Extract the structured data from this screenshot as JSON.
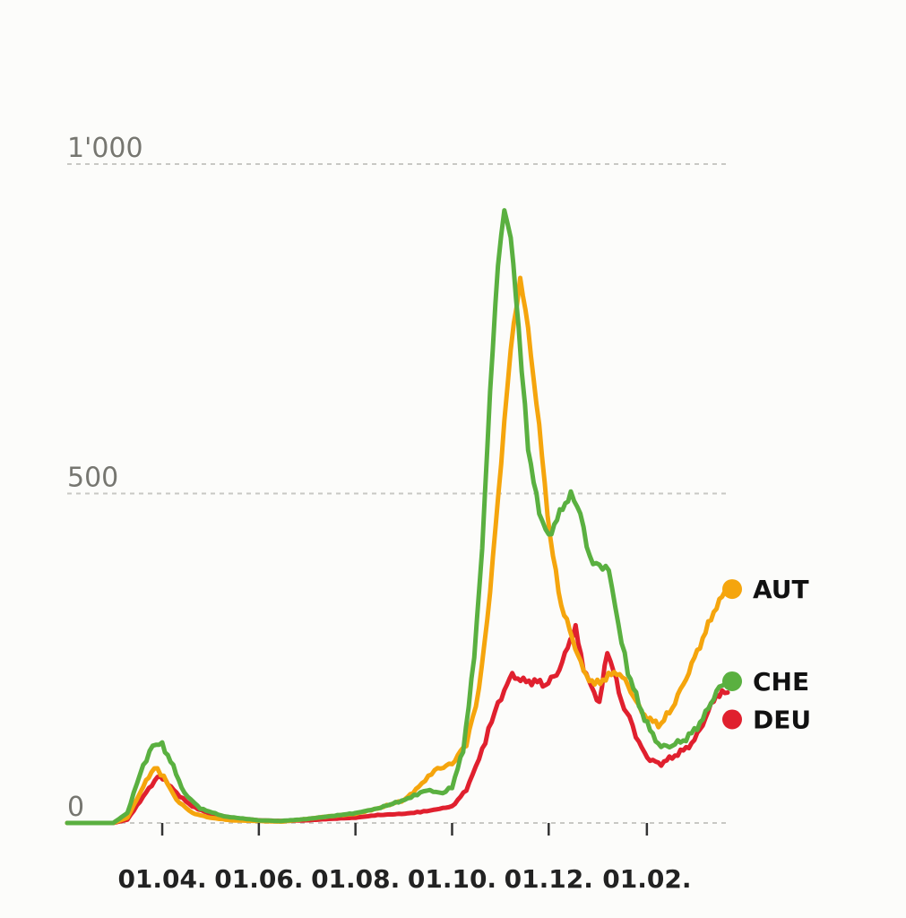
{
  "chart_data": {
    "type": "line",
    "title": "",
    "xlabel": "",
    "ylabel": "",
    "ylim": [
      0,
      1000
    ],
    "yticks": [
      0,
      500,
      1000
    ],
    "ytick_labels": [
      "0",
      "500",
      "1'000"
    ],
    "xlim": [
      "2020-02-01",
      "2021-03-24"
    ],
    "xticks": [
      "2020-04-01",
      "2020-06-01",
      "2020-08-01",
      "2020-10-01",
      "2020-12-01",
      "2021-02-01"
    ],
    "xtick_labels": [
      "01.04.",
      "01.06.",
      "01.08.",
      "01.10.",
      "01.12.",
      "01.02."
    ],
    "grid": true,
    "legend": "end-of-line labels, right",
    "series": [
      {
        "name": "DEU",
        "color": "#e0202e",
        "points": [
          [
            "2020-02-01",
            0
          ],
          [
            "2020-03-01",
            0
          ],
          [
            "2020-03-10",
            5
          ],
          [
            "2020-03-20",
            40
          ],
          [
            "2020-03-29",
            70
          ],
          [
            "2020-04-03",
            65
          ],
          [
            "2020-04-10",
            45
          ],
          [
            "2020-04-20",
            25
          ],
          [
            "2020-05-01",
            14
          ],
          [
            "2020-05-15",
            8
          ],
          [
            "2020-06-01",
            4
          ],
          [
            "2020-06-15",
            3
          ],
          [
            "2020-07-01",
            4
          ],
          [
            "2020-07-15",
            6
          ],
          [
            "2020-08-01",
            8
          ],
          [
            "2020-08-15",
            12
          ],
          [
            "2020-09-01",
            14
          ],
          [
            "2020-09-15",
            18
          ],
          [
            "2020-10-01",
            25
          ],
          [
            "2020-10-10",
            50
          ],
          [
            "2020-10-20",
            110
          ],
          [
            "2020-10-28",
            170
          ],
          [
            "2020-11-03",
            200
          ],
          [
            "2020-11-08",
            225
          ],
          [
            "2020-11-15",
            215
          ],
          [
            "2020-11-22",
            215
          ],
          [
            "2020-11-29",
            210
          ],
          [
            "2020-12-06",
            225
          ],
          [
            "2020-12-13",
            265
          ],
          [
            "2020-12-18",
            300
          ],
          [
            "2020-12-23",
            230
          ],
          [
            "2020-12-28",
            210
          ],
          [
            "2021-01-02",
            180
          ],
          [
            "2021-01-07",
            260
          ],
          [
            "2021-01-11",
            230
          ],
          [
            "2021-01-16",
            185
          ],
          [
            "2021-01-21",
            160
          ],
          [
            "2021-01-27",
            120
          ],
          [
            "2021-02-03",
            95
          ],
          [
            "2021-02-10",
            90
          ],
          [
            "2021-02-17",
            100
          ],
          [
            "2021-02-24",
            110
          ],
          [
            "2021-03-03",
            125
          ],
          [
            "2021-03-10",
            160
          ],
          [
            "2021-03-17",
            195
          ],
          [
            "2021-03-24",
            198
          ]
        ]
      },
      {
        "name": "AUT",
        "color": "#f5a50d",
        "points": [
          [
            "2020-02-01",
            0
          ],
          [
            "2020-03-01",
            0
          ],
          [
            "2020-03-10",
            8
          ],
          [
            "2020-03-20",
            55
          ],
          [
            "2020-03-27",
            85
          ],
          [
            "2020-04-02",
            70
          ],
          [
            "2020-04-10",
            35
          ],
          [
            "2020-04-20",
            15
          ],
          [
            "2020-05-01",
            8
          ],
          [
            "2020-05-15",
            4
          ],
          [
            "2020-06-01",
            3
          ],
          [
            "2020-06-15",
            2
          ],
          [
            "2020-07-01",
            6
          ],
          [
            "2020-07-15",
            10
          ],
          [
            "2020-08-01",
            14
          ],
          [
            "2020-08-15",
            22
          ],
          [
            "2020-09-01",
            35
          ],
          [
            "2020-09-10",
            55
          ],
          [
            "2020-09-20",
            80
          ],
          [
            "2020-10-01",
            90
          ],
          [
            "2020-10-10",
            120
          ],
          [
            "2020-10-18",
            200
          ],
          [
            "2020-10-25",
            350
          ],
          [
            "2020-11-01",
            550
          ],
          [
            "2020-11-07",
            720
          ],
          [
            "2020-11-13",
            825
          ],
          [
            "2020-11-18",
            750
          ],
          [
            "2020-11-25",
            600
          ],
          [
            "2020-12-02",
            430
          ],
          [
            "2020-12-09",
            330
          ],
          [
            "2020-12-16",
            280
          ],
          [
            "2020-12-23",
            230
          ],
          [
            "2020-12-30",
            210
          ],
          [
            "2021-01-06",
            220
          ],
          [
            "2021-01-13",
            230
          ],
          [
            "2021-01-20",
            210
          ],
          [
            "2021-01-27",
            175
          ],
          [
            "2021-02-03",
            155
          ],
          [
            "2021-02-10",
            150
          ],
          [
            "2021-02-17",
            175
          ],
          [
            "2021-02-24",
            210
          ],
          [
            "2021-03-03",
            250
          ],
          [
            "2021-03-10",
            290
          ],
          [
            "2021-03-17",
            330
          ],
          [
            "2021-03-24",
            355
          ]
        ]
      },
      {
        "name": "CHE",
        "color": "#5ab040",
        "points": [
          [
            "2020-02-01",
            0
          ],
          [
            "2020-03-01",
            0
          ],
          [
            "2020-03-10",
            15
          ],
          [
            "2020-03-18",
            75
          ],
          [
            "2020-03-26",
            118
          ],
          [
            "2020-04-01",
            120
          ],
          [
            "2020-04-08",
            85
          ],
          [
            "2020-04-15",
            45
          ],
          [
            "2020-04-25",
            22
          ],
          [
            "2020-05-10",
            10
          ],
          [
            "2020-06-01",
            4
          ],
          [
            "2020-06-15",
            3
          ],
          [
            "2020-07-01",
            6
          ],
          [
            "2020-07-15",
            10
          ],
          [
            "2020-08-01",
            15
          ],
          [
            "2020-08-15",
            22
          ],
          [
            "2020-09-01",
            35
          ],
          [
            "2020-09-15",
            50
          ],
          [
            "2020-09-25",
            45
          ],
          [
            "2020-10-01",
            55
          ],
          [
            "2020-10-08",
            110
          ],
          [
            "2020-10-15",
            250
          ],
          [
            "2020-10-20",
            420
          ],
          [
            "2020-10-25",
            650
          ],
          [
            "2020-10-30",
            850
          ],
          [
            "2020-11-03",
            930
          ],
          [
            "2020-11-07",
            890
          ],
          [
            "2020-11-12",
            750
          ],
          [
            "2020-11-18",
            570
          ],
          [
            "2020-11-25",
            470
          ],
          [
            "2020-12-01",
            435
          ],
          [
            "2020-12-08",
            470
          ],
          [
            "2020-12-15",
            500
          ],
          [
            "2020-12-21",
            470
          ],
          [
            "2020-12-27",
            400
          ],
          [
            "2021-01-02",
            390
          ],
          [
            "2021-01-08",
            385
          ],
          [
            "2021-01-14",
            300
          ],
          [
            "2021-01-20",
            230
          ],
          [
            "2021-01-27",
            180
          ],
          [
            "2021-02-03",
            140
          ],
          [
            "2021-02-10",
            115
          ],
          [
            "2021-02-17",
            118
          ],
          [
            "2021-02-24",
            125
          ],
          [
            "2021-03-03",
            140
          ],
          [
            "2021-03-10",
            165
          ],
          [
            "2021-03-17",
            200
          ],
          [
            "2021-03-24",
            215
          ]
        ]
      }
    ],
    "end_labels": [
      {
        "series": "AUT",
        "text": "AUT"
      },
      {
        "series": "CHE",
        "text": "CHE"
      },
      {
        "series": "DEU",
        "text": "DEU"
      }
    ]
  }
}
